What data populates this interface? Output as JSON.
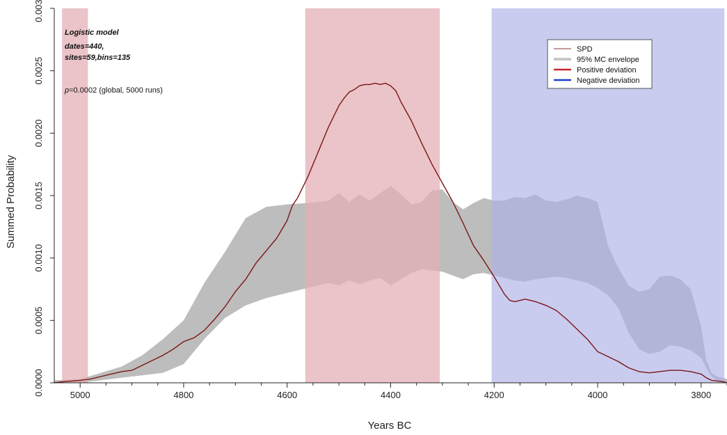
{
  "chart_data": {
    "type": "line",
    "xlabel": "Years BC",
    "ylabel": "Summed Probability",
    "xlim": [
      5050,
      3750
    ],
    "ylim": [
      0,
      0.003
    ],
    "x_ticks": [
      5000,
      4800,
      4600,
      4400,
      4200,
      4000,
      3800
    ],
    "x_tick_labels": [
      "5000",
      "4800",
      "4600",
      "4400",
      "4200",
      "4000",
      "3800"
    ],
    "y_ticks": [
      0,
      0.0005,
      0.001,
      0.0015,
      0.002,
      0.0025,
      0.003
    ],
    "y_tick_labels": [
      "0.0000",
      "0.0005",
      "0.0010",
      "0.0015",
      "0.0020",
      "0.0025",
      "0.0030"
    ],
    "annotations": {
      "model": "Logistic model",
      "dates": "dates=440,",
      "sites": "sites=59,bins=135",
      "p_prefix": "p",
      "p_value": "=0.0002 (global, 5000 runs)"
    },
    "legend": {
      "position": "top-right",
      "entries": [
        {
          "label": "SPD",
          "color": "#b07a7a"
        },
        {
          "label": "95% MC envelope",
          "color": "#c8c8c8"
        },
        {
          "label": "Positive deviation",
          "color": "#c62828"
        },
        {
          "label": "Negative deviation",
          "color": "#1e3cc8"
        }
      ]
    },
    "colors": {
      "positive_band": "#e3b0b5",
      "negative_band": "#aeb0e6",
      "envelope": "#bdbdbd",
      "spd_line": "#7a1515"
    },
    "positive_deviation_ranges": [
      [
        5035,
        4985
      ],
      [
        4565,
        4305
      ]
    ],
    "negative_deviation_ranges": [
      [
        4205,
        3755
      ]
    ],
    "envelope": {
      "x": [
        5050,
        5000,
        4960,
        4920,
        4880,
        4840,
        4800,
        4760,
        4720,
        4680,
        4640,
        4600,
        4560,
        4520,
        4500,
        4480,
        4460,
        4440,
        4420,
        4400,
        4380,
        4360,
        4340,
        4320,
        4300,
        4280,
        4260,
        4240,
        4220,
        4200,
        4180,
        4160,
        4140,
        4120,
        4100,
        4080,
        4060,
        4040,
        4020,
        4000,
        3980,
        3960,
        3940,
        3920,
        3900,
        3880,
        3860,
        3840,
        3820,
        3800,
        3790,
        3780,
        3770,
        3760,
        3750
      ],
      "lower": [
        0.0,
        0.0,
        2e-05,
        4e-05,
        6e-05,
        8e-05,
        0.00015,
        0.00035,
        0.00052,
        0.00062,
        0.00068,
        0.00072,
        0.00076,
        0.0008,
        0.00078,
        0.00082,
        0.00079,
        0.00082,
        0.00084,
        0.00078,
        0.00083,
        0.00088,
        0.00091,
        0.0009,
        0.00089,
        0.00086,
        0.00083,
        0.00087,
        0.00088,
        0.00086,
        0.00084,
        0.00082,
        0.00081,
        0.00083,
        0.00084,
        0.00085,
        0.00084,
        0.00082,
        0.0008,
        0.00076,
        0.0007,
        0.0006,
        0.0004,
        0.00027,
        0.00023,
        0.00025,
        0.0003,
        0.00029,
        0.00026,
        0.0002,
        0.00012,
        5e-05,
        2e-05,
        1e-05,
        0.0
      ],
      "upper": [
        2e-05,
        3e-05,
        8e-05,
        0.00013,
        0.00022,
        0.00035,
        0.0005,
        0.0008,
        0.00105,
        0.00132,
        0.00141,
        0.00143,
        0.00144,
        0.00146,
        0.00152,
        0.00145,
        0.00151,
        0.00146,
        0.00152,
        0.00158,
        0.00151,
        0.00143,
        0.00145,
        0.00154,
        0.00155,
        0.00145,
        0.00139,
        0.00144,
        0.00148,
        0.00146,
        0.00146,
        0.00149,
        0.00148,
        0.00151,
        0.00146,
        0.00145,
        0.00147,
        0.0015,
        0.00148,
        0.00145,
        0.0011,
        0.00092,
        0.00078,
        0.00073,
        0.00075,
        0.00085,
        0.00086,
        0.00083,
        0.00075,
        0.00045,
        0.00018,
        8e-05,
        5e-05,
        4e-05,
        3e-05
      ]
    },
    "series": [
      {
        "name": "SPD",
        "x": [
          5050,
          5030,
          5000,
          4980,
          4960,
          4940,
          4920,
          4900,
          4880,
          4860,
          4840,
          4820,
          4800,
          4780,
          4760,
          4740,
          4720,
          4700,
          4680,
          4660,
          4640,
          4620,
          4600,
          4590,
          4580,
          4560,
          4540,
          4520,
          4500,
          4490,
          4480,
          4470,
          4460,
          4450,
          4440,
          4430,
          4420,
          4410,
          4400,
          4390,
          4380,
          4360,
          4340,
          4320,
          4300,
          4280,
          4260,
          4240,
          4220,
          4200,
          4190,
          4180,
          4170,
          4160,
          4140,
          4120,
          4100,
          4080,
          4060,
          4040,
          4020,
          4000,
          3980,
          3960,
          3940,
          3920,
          3900,
          3880,
          3860,
          3840,
          3820,
          3800,
          3790,
          3780,
          3760,
          3750
        ],
        "y": [
          0.0,
          1e-05,
          2e-05,
          3e-05,
          5e-05,
          7e-05,
          9e-05,
          0.0001,
          0.00014,
          0.00018,
          0.00022,
          0.00027,
          0.00033,
          0.00036,
          0.00042,
          0.00051,
          0.00061,
          0.00073,
          0.00083,
          0.00096,
          0.00106,
          0.00116,
          0.0013,
          0.00142,
          0.00148,
          0.00165,
          0.00185,
          0.00205,
          0.00222,
          0.00228,
          0.00233,
          0.00235,
          0.00238,
          0.00239,
          0.00239,
          0.0024,
          0.00239,
          0.0024,
          0.00238,
          0.00234,
          0.00225,
          0.0021,
          0.00192,
          0.00175,
          0.0016,
          0.00145,
          0.00128,
          0.0011,
          0.00098,
          0.00085,
          0.00078,
          0.00071,
          0.00066,
          0.00065,
          0.00067,
          0.00065,
          0.00062,
          0.00058,
          0.00051,
          0.00043,
          0.00035,
          0.00025,
          0.00021,
          0.00017,
          0.00012,
          9e-05,
          8e-05,
          9e-05,
          0.0001,
          0.0001,
          9e-05,
          7e-05,
          4e-05,
          2e-05,
          1e-05,
          0.0
        ]
      }
    ]
  }
}
